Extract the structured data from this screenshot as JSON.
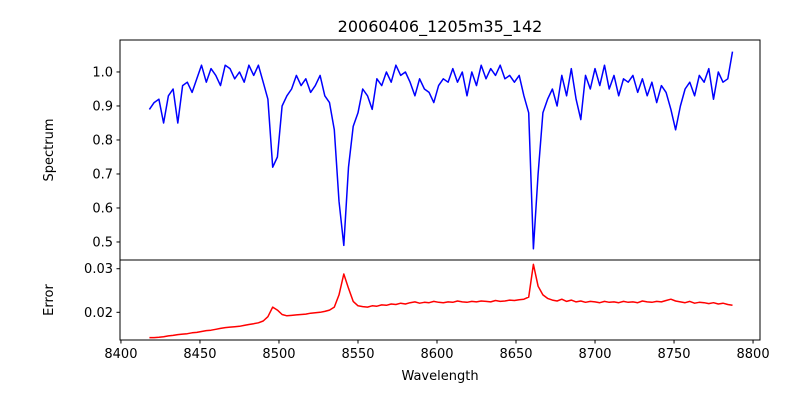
{
  "chart_data": [
    {
      "type": "line",
      "title": "20060406_1205m35_142",
      "xlabel": "",
      "ylabel": "Spectrum",
      "xlim": [
        8399.4,
        8804.4
      ],
      "ylim": [
        0.447,
        1.094
      ],
      "yticks": [
        "0.5",
        "0.6",
        "0.7",
        "0.8",
        "0.9",
        "1.0"
      ],
      "grid": false,
      "color": "#0000ff",
      "series": [
        {
          "name": "Spectrum",
          "x_start": 8418,
          "x_step": 3,
          "values": [
            0.89,
            0.91,
            0.92,
            0.85,
            0.93,
            0.95,
            0.85,
            0.96,
            0.97,
            0.94,
            0.98,
            1.02,
            0.97,
            1.01,
            0.99,
            0.96,
            1.02,
            1.01,
            0.98,
            1.0,
            0.97,
            1.02,
            0.99,
            1.02,
            0.97,
            0.92,
            0.72,
            0.75,
            0.9,
            0.93,
            0.95,
            0.99,
            0.96,
            0.98,
            0.94,
            0.96,
            0.99,
            0.93,
            0.91,
            0.83,
            0.62,
            0.49,
            0.72,
            0.84,
            0.88,
            0.95,
            0.93,
            0.89,
            0.98,
            0.96,
            1.0,
            0.97,
            1.02,
            0.99,
            1.0,
            0.97,
            0.93,
            0.98,
            0.95,
            0.94,
            0.91,
            0.96,
            0.98,
            0.97,
            1.01,
            0.97,
            1.0,
            0.93,
            1.0,
            0.96,
            1.02,
            0.98,
            1.01,
            0.99,
            1.02,
            0.98,
            0.99,
            0.97,
            0.99,
            0.93,
            0.88,
            0.48,
            0.7,
            0.88,
            0.92,
            0.95,
            0.9,
            0.99,
            0.93,
            1.01,
            0.92,
            0.86,
            0.99,
            0.95,
            1.01,
            0.96,
            1.02,
            0.95,
            0.99,
            0.93,
            0.98,
            0.97,
            0.99,
            0.94,
            0.98,
            0.93,
            0.97,
            0.91,
            0.96,
            0.94,
            0.89,
            0.83,
            0.9,
            0.95,
            0.97,
            0.93,
            0.99,
            0.97,
            1.01,
            0.92,
            1.0,
            0.97,
            0.98,
            1.06
          ]
        }
      ]
    },
    {
      "type": "line",
      "xlabel": "Wavelength",
      "ylabel": "Error",
      "xlim": [
        8399.4,
        8804.4
      ],
      "ylim": [
        0.01365,
        0.032
      ],
      "xticks": [
        "8400",
        "8450",
        "8500",
        "8550",
        "8600",
        "8650",
        "8700",
        "8750",
        "8800"
      ],
      "yticks": [
        "0.02",
        "0.03"
      ],
      "grid": false,
      "color": "#ff0000",
      "series": [
        {
          "name": "Error",
          "x_start": 8418,
          "x_step": 3,
          "values": [
            0.0142,
            0.0142,
            0.0143,
            0.0144,
            0.0146,
            0.0147,
            0.0149,
            0.015,
            0.0151,
            0.0153,
            0.0154,
            0.0156,
            0.0158,
            0.0159,
            0.0161,
            0.0163,
            0.0165,
            0.0166,
            0.0167,
            0.0168,
            0.017,
            0.0172,
            0.0174,
            0.0176,
            0.018,
            0.019,
            0.0212,
            0.0205,
            0.0195,
            0.0192,
            0.0193,
            0.0194,
            0.0195,
            0.0196,
            0.0198,
            0.0199,
            0.02,
            0.0202,
            0.0205,
            0.0212,
            0.024,
            0.0288,
            0.0255,
            0.0225,
            0.0215,
            0.0213,
            0.0212,
            0.0215,
            0.0214,
            0.0217,
            0.0216,
            0.0219,
            0.0218,
            0.0221,
            0.0219,
            0.0222,
            0.0224,
            0.0221,
            0.0223,
            0.0222,
            0.0225,
            0.0223,
            0.0222,
            0.0224,
            0.0223,
            0.0226,
            0.0224,
            0.0223,
            0.0225,
            0.0224,
            0.0226,
            0.0225,
            0.0224,
            0.0227,
            0.0225,
            0.0226,
            0.0228,
            0.0227,
            0.0229,
            0.023,
            0.0235,
            0.031,
            0.026,
            0.024,
            0.0232,
            0.0228,
            0.0226,
            0.023,
            0.0225,
            0.0228,
            0.0224,
            0.0226,
            0.0223,
            0.0225,
            0.0224,
            0.0222,
            0.0225,
            0.0223,
            0.0224,
            0.0222,
            0.0225,
            0.0223,
            0.0224,
            0.0222,
            0.0226,
            0.0224,
            0.0223,
            0.0225,
            0.0224,
            0.0227,
            0.023,
            0.0226,
            0.0224,
            0.0222,
            0.0225,
            0.0221,
            0.0223,
            0.0222,
            0.022,
            0.0222,
            0.0219,
            0.0221,
            0.0218,
            0.0216
          ]
        }
      ]
    }
  ]
}
